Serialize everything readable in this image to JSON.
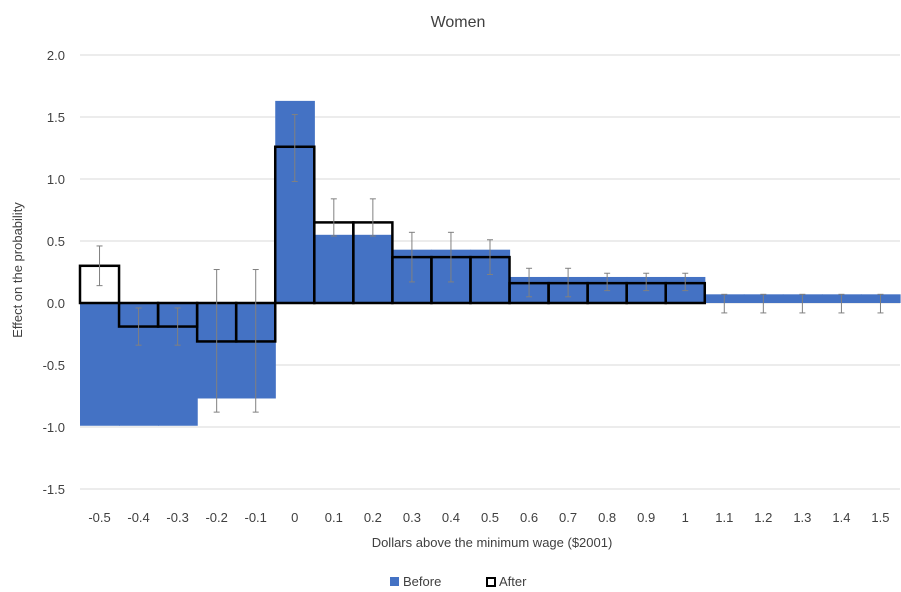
{
  "chart_data": {
    "type": "bar",
    "title": "Women",
    "xlabel": "Dollars above the minimum wage ($2001)",
    "ylabel": "Effect on the probability",
    "ylim": [
      -1.5,
      2.0
    ],
    "yticks": [
      "-1.5",
      "-1.0",
      "-0.5",
      "0.0",
      "0.5",
      "1.0",
      "1.5",
      "2.0"
    ],
    "categories": [
      "-0.5",
      "-0.4",
      "-0.3",
      "-0.2",
      "-0.1",
      "0",
      "0.1",
      "0.2",
      "0.3",
      "0.4",
      "0.5",
      "0.6",
      "0.7",
      "0.8",
      "0.9",
      "1",
      "1.1",
      "1.2",
      "1.3",
      "1.4",
      "1.5"
    ],
    "grid": true,
    "legend_position": "bottom",
    "series": [
      {
        "name": "Before",
        "style": "filled",
        "color": "#4472C4",
        "values": [
          -0.99,
          -0.99,
          -0.99,
          -0.77,
          -0.77,
          1.63,
          0.55,
          0.55,
          0.43,
          0.43,
          0.43,
          0.21,
          0.21,
          0.21,
          0.21,
          0.21,
          0.07,
          0.07,
          0.07,
          0.07,
          0.07
        ],
        "error_low": [
          null,
          null,
          null,
          null,
          null,
          null,
          null,
          null,
          null,
          null,
          null,
          null,
          null,
          null,
          null,
          null,
          -0.08,
          -0.08,
          -0.08,
          -0.08,
          -0.08
        ],
        "error_high": [
          null,
          null,
          null,
          null,
          null,
          null,
          null,
          null,
          null,
          null,
          null,
          null,
          null,
          null,
          null,
          null,
          0.07,
          0.07,
          0.07,
          0.07,
          0.07
        ]
      },
      {
        "name": "After",
        "style": "outline",
        "color": "#000000",
        "values": [
          0.3,
          -0.19,
          -0.19,
          -0.31,
          -0.31,
          1.26,
          0.65,
          0.65,
          0.37,
          0.37,
          0.37,
          0.16,
          0.16,
          0.16,
          0.16,
          0.16,
          null,
          null,
          null,
          null,
          null
        ],
        "error_low": [
          0.14,
          -0.34,
          -0.34,
          -0.88,
          -0.88,
          0.98,
          0.54,
          0.54,
          0.17,
          0.17,
          0.23,
          0.05,
          0.05,
          0.1,
          0.1,
          0.1,
          null,
          null,
          null,
          null,
          null
        ],
        "error_high": [
          0.46,
          -0.04,
          -0.04,
          0.27,
          0.27,
          1.52,
          0.84,
          0.84,
          0.57,
          0.57,
          0.51,
          0.28,
          0.28,
          0.24,
          0.24,
          0.24,
          null,
          null,
          null,
          null,
          null
        ]
      }
    ]
  },
  "colors": {
    "error_bar": "#808080",
    "gridline": "#D9D9D9"
  }
}
